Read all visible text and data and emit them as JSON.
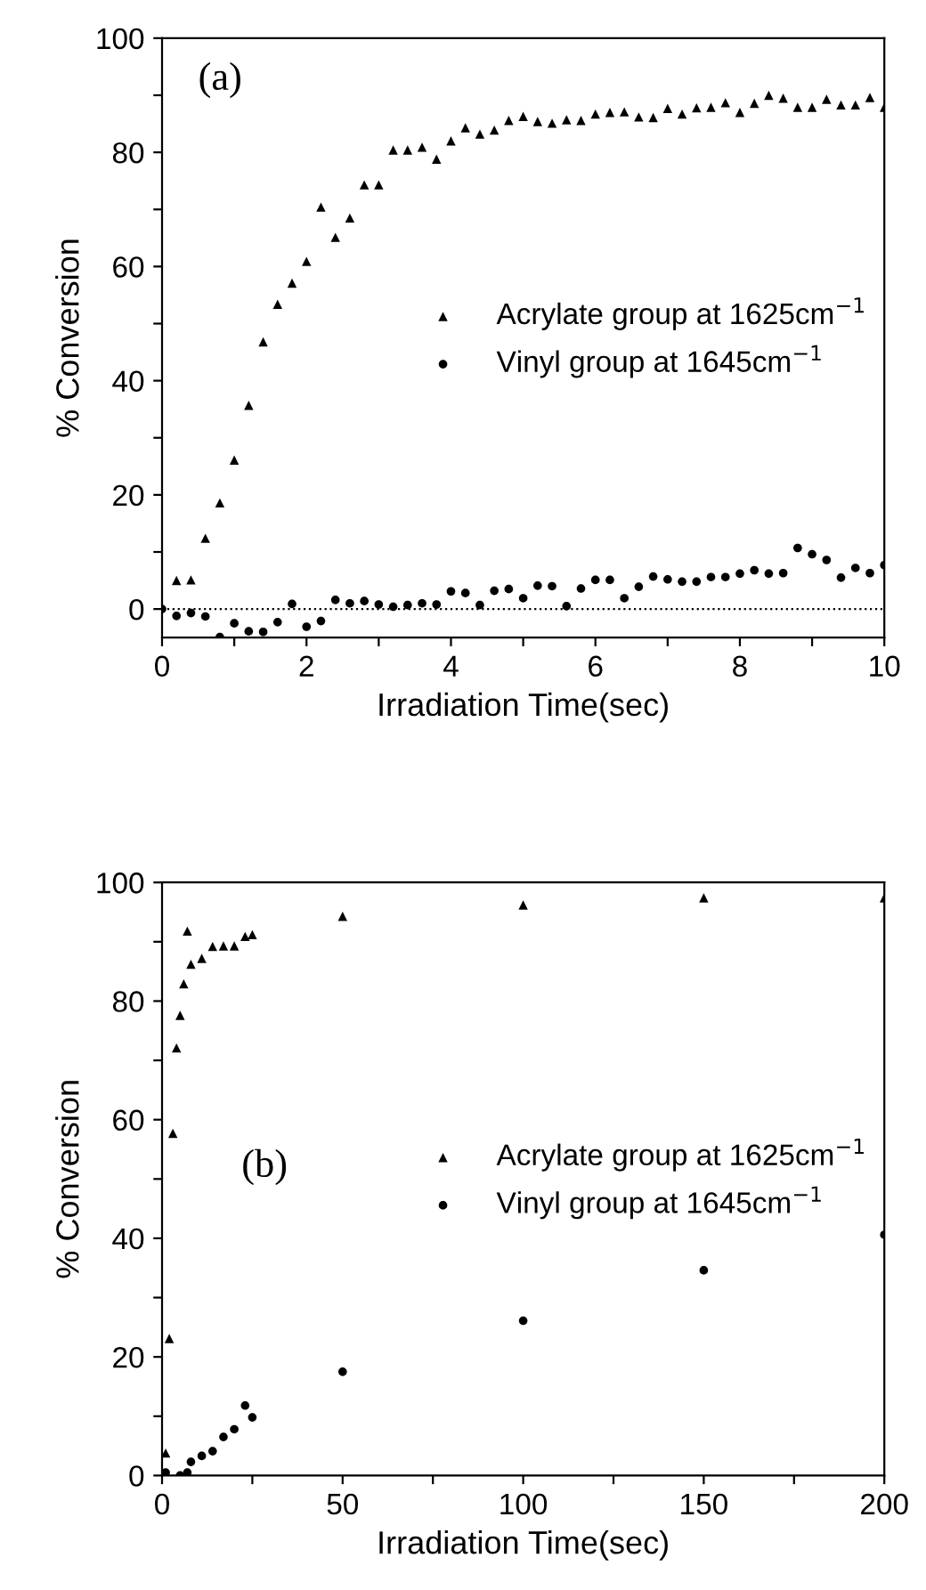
{
  "chart_data": [
    {
      "type": "scatter",
      "xlabel": "Irradiation Time(sec)",
      "ylabel": "% Conversion",
      "annotations": [
        "(a)"
      ],
      "legend": "right",
      "grid": false,
      "xlim": [
        0,
        10
      ],
      "xticks": [
        0,
        {
          "value": 1,
          "label": null
        },
        2,
        {
          "value": 3,
          "label": null
        },
        4,
        {
          "value": 5,
          "label": null
        },
        6,
        {
          "value": 7,
          "label": null
        },
        8,
        {
          "value": 9,
          "label": null
        },
        10
      ],
      "ylim": [
        -5,
        100
      ],
      "yticks": [
        0,
        {
          "value": 10,
          "label": null
        },
        20,
        {
          "value": 30,
          "label": null
        },
        40,
        {
          "value": 50,
          "label": null
        },
        60,
        {
          "value": 70,
          "label": null
        },
        80,
        {
          "value": 90,
          "label": null
        },
        100
      ],
      "ref_lines": [
        {
          "axis": "y",
          "value": 0,
          "line_style": "dotted",
          "color": "#000000"
        }
      ],
      "series": [
        {
          "name": "Acrylate group at 1625cm$^{−1}$",
          "color": "#000000",
          "marker": "triangle",
          "x": [
            0.2,
            0.4,
            0.6,
            0.8,
            1.0,
            1.2,
            1.4,
            1.6,
            1.8,
            2.0,
            2.2,
            2.4,
            2.6,
            2.8,
            3.0,
            3.2,
            3.4,
            3.6,
            3.8,
            4.0,
            4.2,
            4.4,
            4.6,
            4.8,
            5.0,
            5.2,
            5.4,
            5.6,
            5.8,
            6.0,
            6.2,
            6.4,
            6.6,
            6.8,
            7.0,
            7.2,
            7.4,
            7.6,
            7.8,
            8.0,
            8.2,
            8.4,
            8.6,
            8.8,
            9.0,
            9.2,
            9.4,
            9.6,
            9.8,
            10.0
          ],
          "values": [
            5.0,
            5.1,
            12.4,
            18.6,
            26.1,
            35.7,
            46.8,
            53.4,
            57.1,
            60.9,
            70.4,
            65.1,
            68.5,
            74.3,
            74.3,
            80.4,
            80.4,
            80.9,
            78.8,
            82.0,
            84.3,
            83.2,
            83.9,
            85.6,
            86.3,
            85.4,
            85.1,
            85.7,
            85.6,
            86.7,
            87.0,
            87.1,
            86.2,
            86.1,
            87.7,
            86.7,
            87.8,
            87.9,
            88.7,
            87.0,
            88.6,
            90.0,
            89.5,
            87.9,
            87.9,
            89.3,
            88.3,
            88.3,
            89.6,
            87.9
          ]
        },
        {
          "name": "Vinyl group at 1645cm$^{−1}$",
          "color": "#000000",
          "marker": "circle",
          "x": [
            0.0,
            0.2,
            0.4,
            0.6,
            0.8,
            1.0,
            1.2,
            1.4,
            1.6,
            1.8,
            2.0,
            2.2,
            2.4,
            2.6,
            2.8,
            3.0,
            3.2,
            3.4,
            3.6,
            3.8,
            4.0,
            4.2,
            4.4,
            4.6,
            4.8,
            5.0,
            5.2,
            5.4,
            5.6,
            5.8,
            6.0,
            6.2,
            6.4,
            6.6,
            6.8,
            7.0,
            7.2,
            7.4,
            7.6,
            7.8,
            8.0,
            8.2,
            8.4,
            8.6,
            8.8,
            9.0,
            9.2,
            9.4,
            9.6,
            9.8,
            10.0
          ],
          "values": [
            0.0,
            -1.2,
            -0.7,
            -1.3,
            -4.9,
            -2.5,
            -3.9,
            -4.0,
            -2.3,
            0.9,
            -3.1,
            -2.1,
            1.6,
            1.0,
            1.4,
            0.8,
            0.4,
            0.7,
            1.0,
            0.8,
            3.1,
            2.8,
            0.7,
            3.2,
            3.5,
            1.9,
            4.1,
            4.0,
            0.5,
            3.6,
            5.1,
            5.1,
            1.9,
            3.9,
            5.7,
            5.2,
            4.8,
            4.8,
            5.6,
            5.6,
            6.2,
            6.8,
            6.2,
            6.3,
            10.7,
            9.6,
            8.6,
            5.5,
            7.2,
            6.3,
            7.7
          ]
        }
      ]
    },
    {
      "type": "scatter",
      "xlabel": "Irradiation Time(sec)",
      "ylabel": "% Conversion",
      "annotations": [
        "(b)"
      ],
      "legend": "right",
      "grid": false,
      "xlim": [
        0,
        200
      ],
      "xticks": [
        0,
        {
          "value": 25,
          "label": null
        },
        50,
        {
          "value": 75,
          "label": null
        },
        100,
        {
          "value": 125,
          "label": null
        },
        150,
        {
          "value": 175,
          "label": null
        },
        200
      ],
      "ylim": [
        0,
        100
      ],
      "yticks": [
        0,
        {
          "value": 10,
          "label": null
        },
        20,
        {
          "value": 30,
          "label": null
        },
        40,
        {
          "value": 50,
          "label": null
        },
        60,
        {
          "value": 70,
          "label": null
        },
        80,
        {
          "value": 90,
          "label": null
        },
        100
      ],
      "series": [
        {
          "name": "Acrylate group at 1625cm$^{−1}$",
          "color": "#000000",
          "marker": "triangle",
          "x": [
            1,
            2,
            3,
            4,
            5,
            6,
            7,
            8,
            11,
            14,
            17,
            20,
            23,
            25,
            50,
            100,
            150,
            200
          ],
          "values": [
            3.8,
            23.1,
            57.7,
            72.1,
            77.6,
            82.9,
            91.8,
            86.2,
            87.2,
            89.2,
            89.3,
            89.3,
            90.9,
            91.2,
            94.3,
            96.2,
            97.4,
            97.4
          ]
        },
        {
          "name": "Vinyl group at 1645cm$^{−1}$",
          "color": "#000000",
          "marker": "circle",
          "x": [
            1,
            5,
            7,
            8,
            11,
            14,
            17,
            20,
            23,
            25,
            50,
            100,
            150,
            200
          ],
          "values": [
            0.5,
            0.0,
            0.5,
            2.3,
            3.3,
            4.1,
            6.5,
            7.8,
            11.8,
            9.8,
            17.5,
            26.1,
            34.6,
            40.6
          ]
        }
      ]
    }
  ]
}
